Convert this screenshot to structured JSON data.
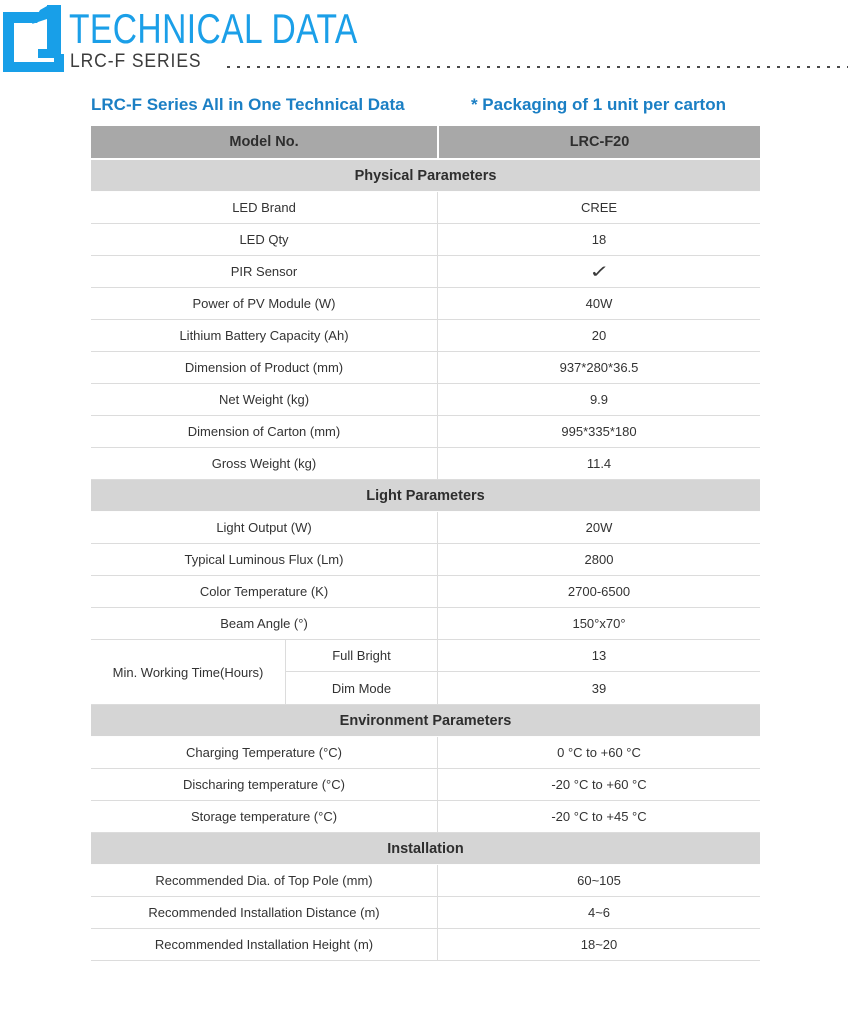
{
  "header": {
    "title": "TECHNICAL DATA",
    "series": "LRC-F SERIES"
  },
  "subtitle": {
    "left": "LRC-F Series All in One Technical Data",
    "right": "* Packaging of 1 unit per carton"
  },
  "colors": {
    "title_blue": "#1b9fe8",
    "heading_blue": "#1b7fc4",
    "header_row_gray": "#a8a8a8",
    "section_row_gray": "#d5d5d5",
    "border_gray": "#dcdcdc"
  },
  "table": {
    "header": {
      "label": "Model No.",
      "value": "LRC-F20"
    },
    "sections": [
      {
        "title": "Physical Parameters",
        "rows": [
          {
            "label": "LED Brand",
            "value": "CREE"
          },
          {
            "label": "LED Qty",
            "value": "18"
          },
          {
            "label": "PIR Sensor",
            "value": "✓",
            "check": true
          },
          {
            "label": "Power of PV Module (W)",
            "value": "40W"
          },
          {
            "label": "Lithium Battery Capacity (Ah)",
            "value": "20"
          },
          {
            "label": "Dimension of Product (mm)",
            "value": "937*280*36.5"
          },
          {
            "label": "Net Weight (kg)",
            "value": "9.9"
          },
          {
            "label": "Dimension of Carton (mm)",
            "value": "995*335*180"
          },
          {
            "label": "Gross Weight (kg)",
            "value": "11.4"
          }
        ]
      },
      {
        "title": "Light Parameters",
        "rows": [
          {
            "label": "Light Output (W)",
            "value": "20W"
          },
          {
            "label": "Typical Luminous Flux (Lm)",
            "value": "2800"
          },
          {
            "label": "Color Temperature (K)",
            "value": "2700-6500"
          },
          {
            "label": "Beam Angle (°)",
            "value": "150°x70°"
          },
          {
            "label": "Min. Working Time(Hours)",
            "group": [
              {
                "sublabel": "Full Bright",
                "value": "13"
              },
              {
                "sublabel": "Dim Mode",
                "value": "39"
              }
            ]
          }
        ]
      },
      {
        "title": "Environment Parameters",
        "rows": [
          {
            "label": "Charging Temperature (°C)",
            "value": "0 °C to +60 °C"
          },
          {
            "label": "Discharing temperature (°C)",
            "value": "-20 °C to +60 °C"
          },
          {
            "label": "Storage temperature (°C)",
            "value": "-20 °C to +45 °C"
          }
        ]
      },
      {
        "title": "Installation",
        "rows": [
          {
            "label": "Recommended Dia. of Top Pole (mm)",
            "value": "60~105"
          },
          {
            "label": "Recommended Installation Distance (m)",
            "value": "4~6"
          },
          {
            "label": "Recommended Installation Height (m)",
            "value": "18~20"
          }
        ]
      }
    ]
  }
}
